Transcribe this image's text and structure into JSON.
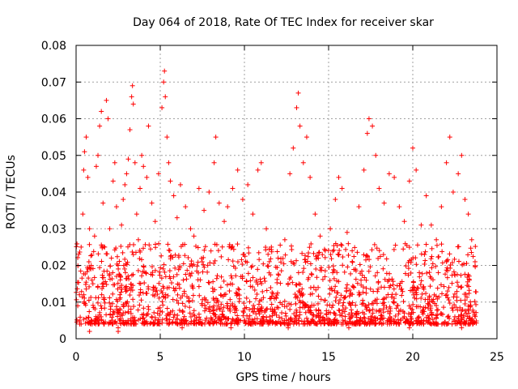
{
  "chart_data": {
    "type": "scatter",
    "title": "Day 064 of 2018, Rate Of TEC Index for receiver skar",
    "xlabel": "GPS time / hours",
    "ylabel": "ROTI / TECUs",
    "xlim": [
      0,
      25
    ],
    "ylim": [
      0,
      0.08
    ],
    "x_ticks": [
      0,
      5,
      10,
      15,
      20,
      25
    ],
    "y_ticks": [
      0,
      0.01,
      0.02,
      0.03,
      0.04,
      0.05,
      0.06,
      0.07,
      0.08
    ],
    "x_tick_labels": [
      "0",
      "5",
      "10",
      "15",
      "20",
      "25"
    ],
    "y_tick_labels": [
      "0",
      "0.01",
      "0.02",
      "0.03",
      "0.04",
      "0.05",
      "0.06",
      "0.07",
      "0.08"
    ],
    "grid": true,
    "marker": "+",
    "color": "#ff0000",
    "note": "Dense point cloud; representative subset of sampled points",
    "points": [
      [
        0.1,
        0.009
      ],
      [
        0.2,
        0.012
      ],
      [
        0.3,
        0.025
      ],
      [
        0.4,
        0.034
      ],
      [
        0.45,
        0.046
      ],
      [
        0.5,
        0.051
      ],
      [
        0.6,
        0.055
      ],
      [
        0.7,
        0.044
      ],
      [
        0.8,
        0.03
      ],
      [
        0.9,
        0.02
      ],
      [
        1.0,
        0.015
      ],
      [
        1.1,
        0.028
      ],
      [
        1.2,
        0.047
      ],
      [
        1.3,
        0.05
      ],
      [
        1.4,
        0.058
      ],
      [
        1.5,
        0.062
      ],
      [
        1.6,
        0.037
      ],
      [
        1.7,
        0.025
      ],
      [
        1.8,
        0.065
      ],
      [
        1.9,
        0.06
      ],
      [
        2.0,
        0.03
      ],
      [
        2.1,
        0.022
      ],
      [
        2.2,
        0.043
      ],
      [
        2.3,
        0.048
      ],
      [
        2.4,
        0.036
      ],
      [
        2.5,
        0.02
      ],
      [
        2.6,
        0.012
      ],
      [
        2.7,
        0.031
      ],
      [
        2.8,
        0.038
      ],
      [
        2.9,
        0.042
      ],
      [
        3.0,
        0.045
      ],
      [
        3.1,
        0.049
      ],
      [
        3.2,
        0.057
      ],
      [
        3.3,
        0.066
      ],
      [
        3.35,
        0.069
      ],
      [
        3.4,
        0.064
      ],
      [
        3.5,
        0.048
      ],
      [
        3.6,
        0.034
      ],
      [
        3.7,
        0.027
      ],
      [
        3.8,
        0.041
      ],
      [
        3.9,
        0.05
      ],
      [
        4.0,
        0.047
      ],
      [
        4.2,
        0.044
      ],
      [
        4.3,
        0.058
      ],
      [
        4.5,
        0.037
      ],
      [
        4.7,
        0.032
      ],
      [
        4.9,
        0.045
      ],
      [
        5.1,
        0.063
      ],
      [
        5.2,
        0.07
      ],
      [
        5.25,
        0.073
      ],
      [
        5.3,
        0.066
      ],
      [
        5.4,
        0.055
      ],
      [
        5.5,
        0.048
      ],
      [
        5.6,
        0.043
      ],
      [
        5.8,
        0.039
      ],
      [
        6.0,
        0.033
      ],
      [
        6.2,
        0.042
      ],
      [
        6.5,
        0.036
      ],
      [
        6.8,
        0.03
      ],
      [
        7.0,
        0.028
      ],
      [
        7.3,
        0.041
      ],
      [
        7.6,
        0.035
      ],
      [
        7.9,
        0.04
      ],
      [
        8.2,
        0.048
      ],
      [
        8.3,
        0.055
      ],
      [
        8.5,
        0.037
      ],
      [
        8.8,
        0.032
      ],
      [
        9.0,
        0.036
      ],
      [
        9.3,
        0.041
      ],
      [
        9.6,
        0.046
      ],
      [
        9.9,
        0.038
      ],
      [
        10.2,
        0.042
      ],
      [
        10.5,
        0.034
      ],
      [
        10.8,
        0.046
      ],
      [
        11.0,
        0.048
      ],
      [
        11.3,
        0.03
      ],
      [
        11.6,
        0.025
      ],
      [
        12.0,
        0.022
      ],
      [
        12.4,
        0.027
      ],
      [
        12.7,
        0.045
      ],
      [
        12.9,
        0.052
      ],
      [
        13.1,
        0.063
      ],
      [
        13.2,
        0.067
      ],
      [
        13.3,
        0.058
      ],
      [
        13.5,
        0.048
      ],
      [
        13.7,
        0.055
      ],
      [
        13.9,
        0.044
      ],
      [
        14.2,
        0.034
      ],
      [
        14.5,
        0.028
      ],
      [
        14.8,
        0.024
      ],
      [
        15.1,
        0.03
      ],
      [
        15.4,
        0.038
      ],
      [
        15.6,
        0.044
      ],
      [
        15.8,
        0.041
      ],
      [
        16.1,
        0.029
      ],
      [
        16.4,
        0.024
      ],
      [
        16.8,
        0.036
      ],
      [
        17.1,
        0.046
      ],
      [
        17.3,
        0.056
      ],
      [
        17.4,
        0.06
      ],
      [
        17.6,
        0.058
      ],
      [
        17.8,
        0.05
      ],
      [
        18.0,
        0.041
      ],
      [
        18.3,
        0.037
      ],
      [
        18.6,
        0.045
      ],
      [
        18.9,
        0.044
      ],
      [
        19.2,
        0.036
      ],
      [
        19.5,
        0.032
      ],
      [
        19.8,
        0.043
      ],
      [
        20.0,
        0.052
      ],
      [
        20.2,
        0.046
      ],
      [
        20.5,
        0.031
      ],
      [
        20.8,
        0.039
      ],
      [
        21.1,
        0.031
      ],
      [
        21.4,
        0.027
      ],
      [
        21.7,
        0.036
      ],
      [
        22.0,
        0.048
      ],
      [
        22.2,
        0.055
      ],
      [
        22.4,
        0.04
      ],
      [
        22.7,
        0.045
      ],
      [
        22.9,
        0.05
      ],
      [
        23.1,
        0.038
      ],
      [
        23.3,
        0.034
      ],
      [
        23.5,
        0.027
      ],
      [
        23.7,
        0.021
      ],
      [
        0.3,
        0.004
      ],
      [
        1.5,
        0.005
      ],
      [
        2.5,
        0.003
      ],
      [
        3.5,
        0.004
      ],
      [
        4.5,
        0.006
      ],
      [
        5.5,
        0.004
      ],
      [
        6.5,
        0.005
      ],
      [
        7.5,
        0.004
      ],
      [
        8.5,
        0.006
      ],
      [
        9.5,
        0.005
      ],
      [
        10.5,
        0.004
      ],
      [
        11.5,
        0.006
      ],
      [
        12.5,
        0.005
      ],
      [
        13.5,
        0.004
      ],
      [
        14.5,
        0.006
      ],
      [
        15.5,
        0.005
      ],
      [
        16.5,
        0.004
      ],
      [
        17.5,
        0.006
      ],
      [
        18.5,
        0.004
      ],
      [
        19.5,
        0.006
      ],
      [
        20.5,
        0.005
      ],
      [
        21.5,
        0.004
      ],
      [
        22.5,
        0.006
      ],
      [
        23.5,
        0.005
      ],
      [
        0.8,
        0.002
      ],
      [
        2.5,
        0.002
      ],
      [
        6.3,
        0.003
      ],
      [
        9.2,
        0.003
      ],
      [
        12.6,
        0.003
      ],
      [
        16.2,
        0.003
      ],
      [
        19.8,
        0.003
      ],
      [
        22.9,
        0.003
      ]
    ]
  }
}
